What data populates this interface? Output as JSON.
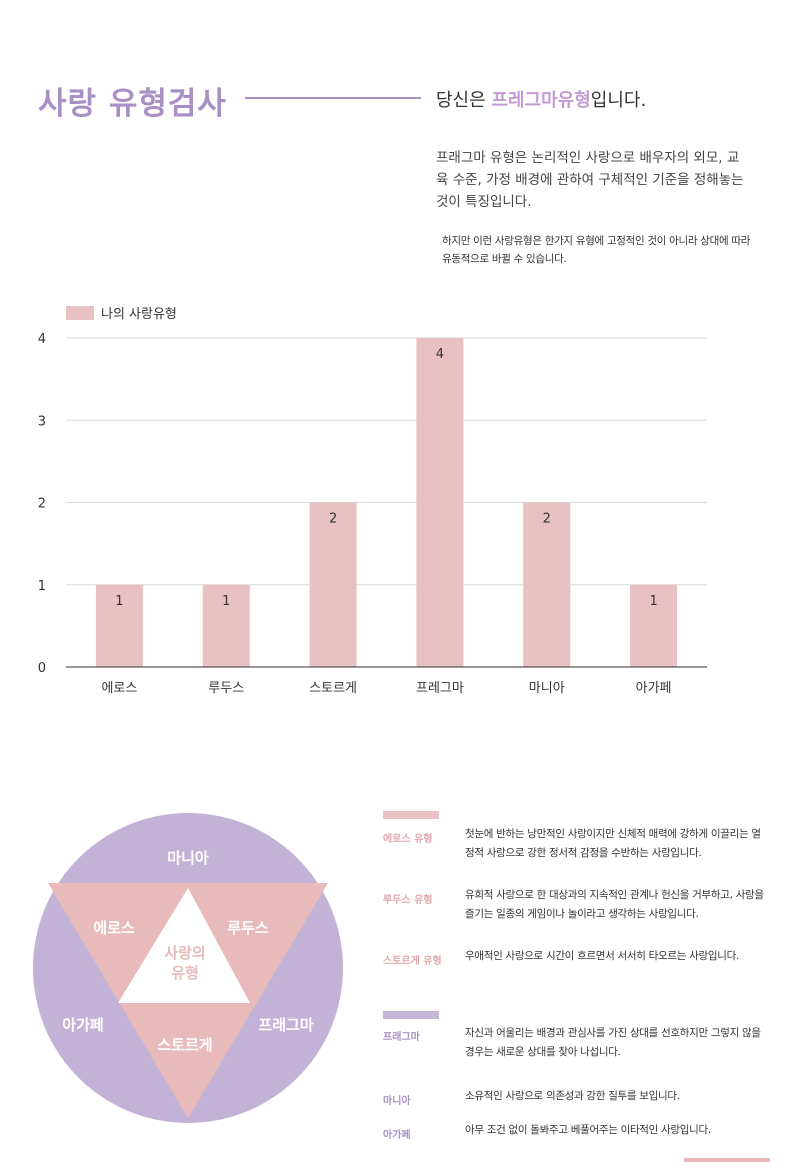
{
  "header": {
    "title": "사랑 유형검사",
    "result_prefix": "당신은 ",
    "result_type": "프레그마유형",
    "result_suffix": "입니다.",
    "description": "프래그마 유형은 논리적인 사랑으로 배우자의 외모, 교육 수준, 가정 배경에 관하여 구체적인 기준을 정해놓는 것이 특징입니다.",
    "note": "하지만 이런 사랑유형은 한가지 유형에 고정적인 것이 아니라 상대에 따라 유동적으로 바뀔 수 있습니다."
  },
  "chart_data": {
    "type": "bar",
    "categories": [
      "에로스",
      "루두스",
      "스토르게",
      "프레그마",
      "마니아",
      "아가페"
    ],
    "series": [
      {
        "name": "나의 사랑유형",
        "values": [
          1,
          1,
          2,
          4,
          2,
          1
        ]
      }
    ],
    "ylim": [
      0,
      4
    ],
    "yticks": [
      0,
      1,
      2,
      3,
      4
    ],
    "grid": true,
    "legend": "top-left",
    "data_labels": true,
    "colors": {
      "bar": "#e8c1c4",
      "grid": "#d9d9d9",
      "axis": "#333333"
    }
  },
  "diagram": {
    "center": [
      "사랑의",
      "유형"
    ],
    "outer_labels": {
      "top": "마니아",
      "left": "아가페",
      "right": "프래그마"
    },
    "inner_labels": {
      "left": "에로스",
      "right": "루두스",
      "bottom": "스토르게"
    },
    "colors": {
      "circle": "#c2b3d6",
      "triangle": "#e8bab9",
      "center": "#ffffff",
      "text": "#ffffff"
    }
  },
  "types_pink": [
    {
      "name": "에로스 유형",
      "desc": "첫눈에 반하는 낭만적인 사랑이지만 신체적 매력에 강하게 이끌리는 열정적 사랑으로 강한 정서적 감정을 수반하는 사랑입니다."
    },
    {
      "name": "루두스 유형",
      "desc": "유희적 사랑으로 한 대상과의 지속적인 관계나 헌신을 거부하고, 사랑을 즐기는 일종의 게임이나 놀이라고 생각하는 사랑입니다."
    },
    {
      "name": "스토르게 유형",
      "desc": "우애적인 사랑으로 시간이 흐르면서 서서히 타오르는 사랑입니다."
    }
  ],
  "types_purple": [
    {
      "name": "프래그마",
      "desc": "자신과 어울리는 배경과 관심사를 가진 상대를 선호하지만 그렇지 않을 경우는 새로운 상대를 찾아 나섭니다."
    },
    {
      "name": "마니아",
      "desc": "소유적인 사랑으로 의존성과 강한 질투를 보입니다."
    },
    {
      "name": "아가페",
      "desc": "아무 조건 없이 돌봐주고 베풀어주는 이타적인 사랑입니다."
    }
  ],
  "colors": {
    "accent_purple": "#a88fc4",
    "accent_pink": "#e8c1c4",
    "highlight": "#c49ad6"
  }
}
